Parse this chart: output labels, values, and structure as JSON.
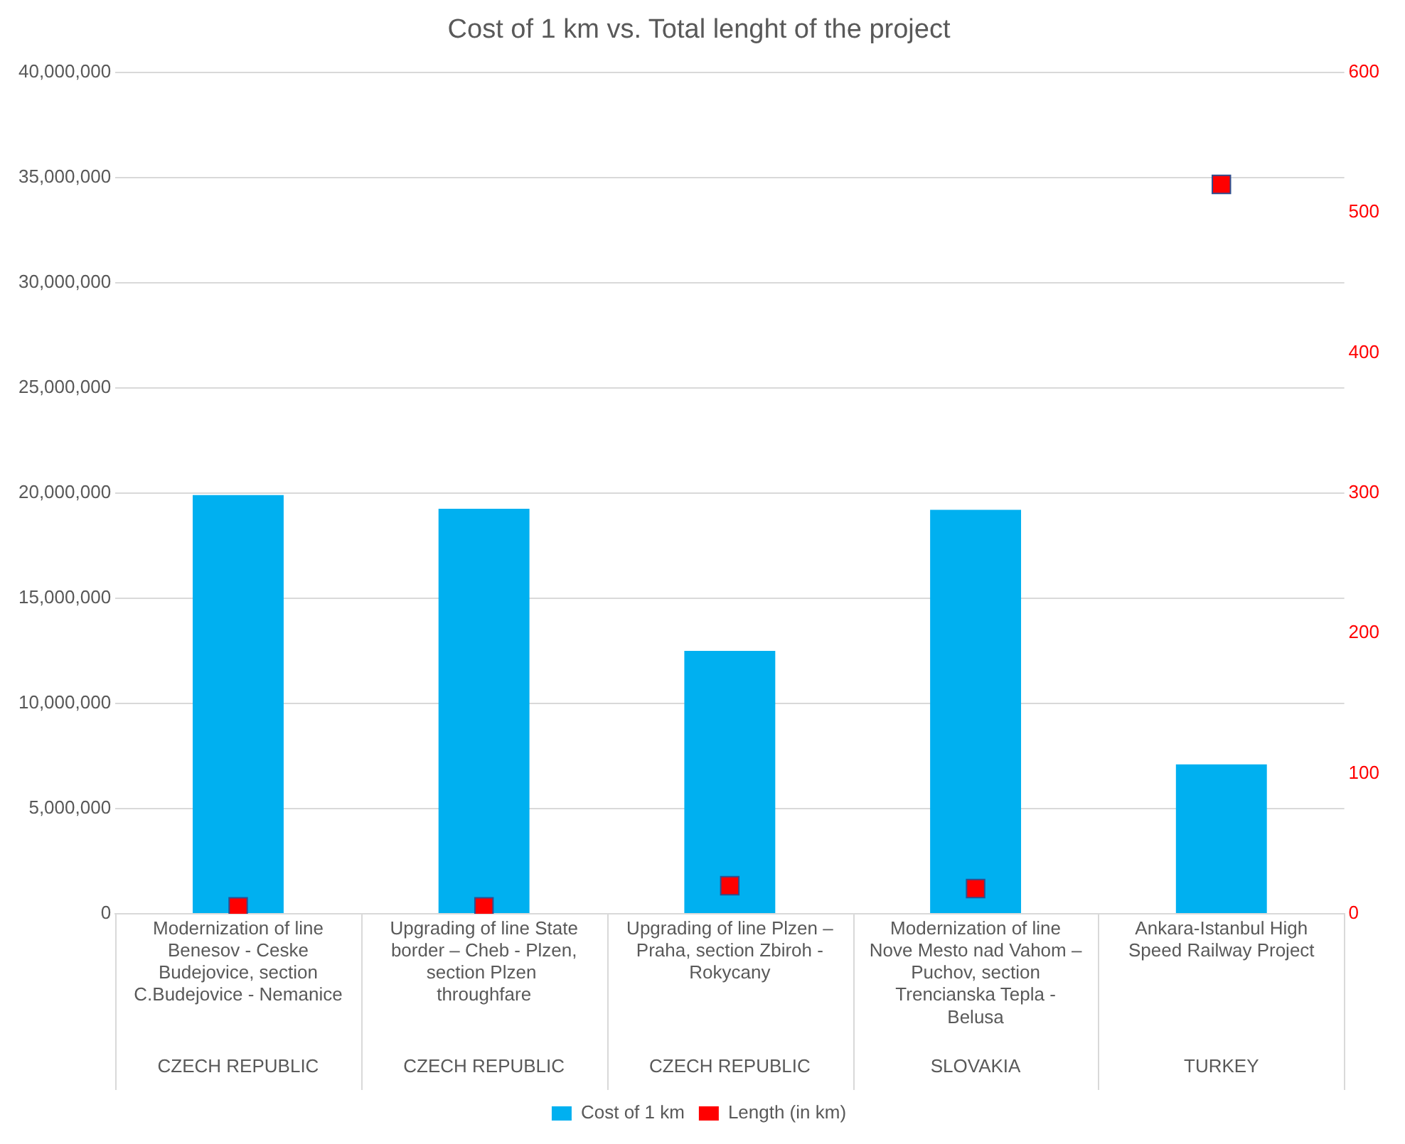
{
  "chart_data": {
    "type": "bar",
    "title": "Cost of 1 km vs. Total lenght of the project",
    "categories": [
      "Modernization of line Benesov - Ceske Budejovice, section C.Budejovice - Nemanice",
      "Upgrading of line State border – Cheb - Plzen, section Plzen  throughfare",
      "Upgrading of line Plzen – Praha, section Zbiroh - Rokycany",
      "Modernization of line Nove Mesto nad Vahom – Puchov, section Trencianska Tepla - Belusa",
      "Ankara-Istanbul High Speed Railway Project"
    ],
    "series": [
      {
        "name": "Cost of 1 km",
        "type": "bar",
        "color": "#00b0f0",
        "values": [
          19900000,
          19250000,
          12500000,
          19200000,
          7100000
        ]
      },
      {
        "name": "Length (in km)",
        "type": "scatter",
        "axis": "y2",
        "marker": "square",
        "color": "#ff0000",
        "values": [
          5,
          5,
          20,
          18,
          520
        ]
      }
    ],
    "ylim": [
      0,
      40000000
    ],
    "yticks": [
      0,
      {
        "value": 5000000,
        "label": "5,000,000"
      },
      {
        "value": 10000000,
        "label": "10,000,000"
      },
      {
        "value": 15000000,
        "label": "15,000,000"
      },
      {
        "value": 20000000,
        "label": "20,000,000"
      },
      {
        "value": 25000000,
        "label": "25,000,000"
      },
      {
        "value": 30000000,
        "label": "30,000,000"
      },
      {
        "value": 35000000,
        "label": "35,000,000"
      },
      {
        "value": 40000000,
        "label": "40,000,000"
      }
    ],
    "y2lim": [
      0,
      600
    ],
    "y2ticks": [
      0,
      100,
      200,
      300,
      400,
      500,
      600
    ],
    "annotations": [
      "CZECH REPUBLIC",
      "CZECH REPUBLIC",
      "CZECH REPUBLIC",
      "SLOVAKIA",
      "TURKEY"
    ],
    "grid": "y",
    "legend": "bottom"
  }
}
